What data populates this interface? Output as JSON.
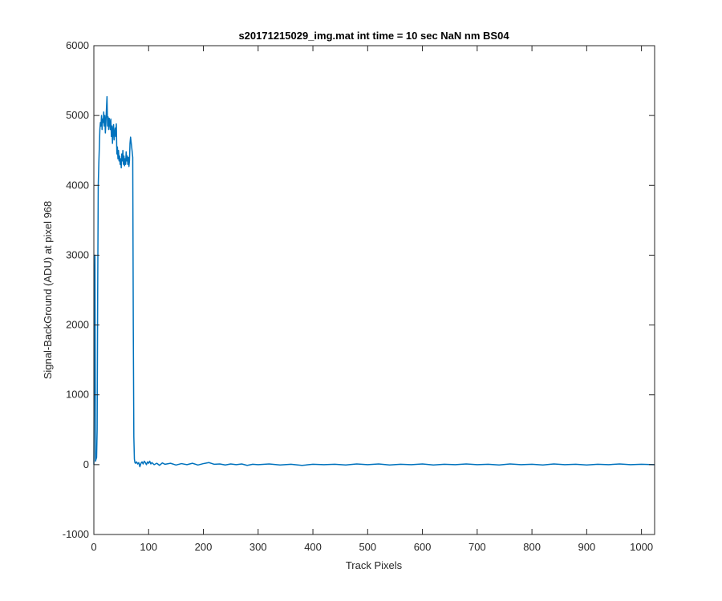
{
  "chart_data": {
    "type": "line",
    "title": "s20171215029_img.mat int time = 10 sec  NaN nm BS04",
    "xlabel": "Track Pixels",
    "ylabel": "Signal-BackGround (ADU) at pixel 968",
    "xlim": [
      0,
      1024
    ],
    "ylim": [
      -1000,
      6000
    ],
    "xticks": [
      0,
      100,
      200,
      300,
      400,
      500,
      600,
      700,
      800,
      900,
      1000
    ],
    "yticks": [
      -1000,
      0,
      1000,
      2000,
      3000,
      4000,
      5000,
      6000
    ],
    "grid": false,
    "legend": "none",
    "colors": {
      "line": "#0072bd",
      "axes": "#262626",
      "background": "#ffffff"
    },
    "series": [
      {
        "points": [
          [
            0,
            0
          ],
          [
            1,
            2000
          ],
          [
            2,
            3000
          ],
          [
            3,
            50
          ],
          [
            4,
            80
          ],
          [
            5,
            100
          ],
          [
            6,
            500
          ],
          [
            7,
            2500
          ],
          [
            8,
            4000
          ],
          [
            9,
            4300
          ],
          [
            10,
            4550
          ],
          [
            11,
            4800
          ],
          [
            12,
            4900
          ],
          [
            13,
            4850
          ],
          [
            14,
            5000
          ],
          [
            15,
            4800
          ],
          [
            16,
            4950
          ],
          [
            17,
            4900
          ],
          [
            18,
            5050
          ],
          [
            19,
            4850
          ],
          [
            20,
            5000
          ],
          [
            21,
            4750
          ],
          [
            22,
            4900
          ],
          [
            23,
            5100
          ],
          [
            24,
            5270
          ],
          [
            25,
            4850
          ],
          [
            26,
            4980
          ],
          [
            27,
            4800
          ],
          [
            28,
            4960
          ],
          [
            29,
            4900
          ],
          [
            30,
            4800
          ],
          [
            31,
            4950
          ],
          [
            32,
            4700
          ],
          [
            33,
            4850
          ],
          [
            34,
            4600
          ],
          [
            35,
            4800
          ],
          [
            36,
            4870
          ],
          [
            37,
            4650
          ],
          [
            38,
            4750
          ],
          [
            39,
            4820
          ],
          [
            40,
            4700
          ],
          [
            41,
            4880
          ],
          [
            42,
            4450
          ],
          [
            43,
            4550
          ],
          [
            44,
            4380
          ],
          [
            45,
            4500
          ],
          [
            46,
            4350
          ],
          [
            47,
            4420
          ],
          [
            48,
            4300
          ],
          [
            49,
            4380
          ],
          [
            50,
            4250
          ],
          [
            51,
            4450
          ],
          [
            52,
            4350
          ],
          [
            53,
            4500
          ],
          [
            54,
            4300
          ],
          [
            55,
            4420
          ],
          [
            56,
            4280
          ],
          [
            57,
            4380
          ],
          [
            58,
            4300
          ],
          [
            59,
            4480
          ],
          [
            60,
            4350
          ],
          [
            61,
            4420
          ],
          [
            62,
            4300
          ],
          [
            63,
            4400
          ],
          [
            64,
            4270
          ],
          [
            65,
            4350
          ],
          [
            66,
            4600
          ],
          [
            67,
            4690
          ],
          [
            68,
            4620
          ],
          [
            69,
            4550
          ],
          [
            70,
            4480
          ],
          [
            71,
            4400
          ],
          [
            72,
            2000
          ],
          [
            73,
            400
          ],
          [
            74,
            80
          ],
          [
            75,
            30
          ],
          [
            76,
            20
          ],
          [
            78,
            40
          ],
          [
            80,
            10
          ],
          [
            82,
            30
          ],
          [
            84,
            -30
          ],
          [
            86,
            20
          ],
          [
            88,
            40
          ],
          [
            90,
            10
          ],
          [
            92,
            50
          ],
          [
            94,
            30
          ],
          [
            96,
            0
          ],
          [
            98,
            40
          ],
          [
            100,
            20
          ],
          [
            102,
            50
          ],
          [
            104,
            10
          ],
          [
            106,
            30
          ],
          [
            110,
            0
          ],
          [
            115,
            20
          ],
          [
            120,
            -10
          ],
          [
            125,
            25
          ],
          [
            130,
            5
          ],
          [
            140,
            20
          ],
          [
            150,
            -5
          ],
          [
            160,
            15
          ],
          [
            170,
            0
          ],
          [
            180,
            20
          ],
          [
            190,
            -5
          ],
          [
            200,
            15
          ],
          [
            210,
            30
          ],
          [
            220,
            5
          ],
          [
            230,
            10
          ],
          [
            240,
            -5
          ],
          [
            250,
            10
          ],
          [
            260,
            0
          ],
          [
            270,
            10
          ],
          [
            280,
            -10
          ],
          [
            290,
            5
          ],
          [
            300,
            0
          ],
          [
            320,
            10
          ],
          [
            340,
            -5
          ],
          [
            360,
            5
          ],
          [
            380,
            -10
          ],
          [
            400,
            5
          ],
          [
            420,
            0
          ],
          [
            440,
            5
          ],
          [
            460,
            -5
          ],
          [
            480,
            10
          ],
          [
            500,
            0
          ],
          [
            520,
            10
          ],
          [
            540,
            -5
          ],
          [
            560,
            5
          ],
          [
            580,
            0
          ],
          [
            600,
            10
          ],
          [
            620,
            -5
          ],
          [
            640,
            5
          ],
          [
            660,
            0
          ],
          [
            680,
            10
          ],
          [
            700,
            0
          ],
          [
            720,
            5
          ],
          [
            740,
            -5
          ],
          [
            760,
            10
          ],
          [
            780,
            0
          ],
          [
            800,
            5
          ],
          [
            820,
            -5
          ],
          [
            840,
            10
          ],
          [
            860,
            0
          ],
          [
            880,
            5
          ],
          [
            900,
            -5
          ],
          [
            920,
            5
          ],
          [
            940,
            0
          ],
          [
            960,
            10
          ],
          [
            980,
            0
          ],
          [
            1000,
            5
          ],
          [
            1024,
            0
          ]
        ]
      }
    ]
  }
}
